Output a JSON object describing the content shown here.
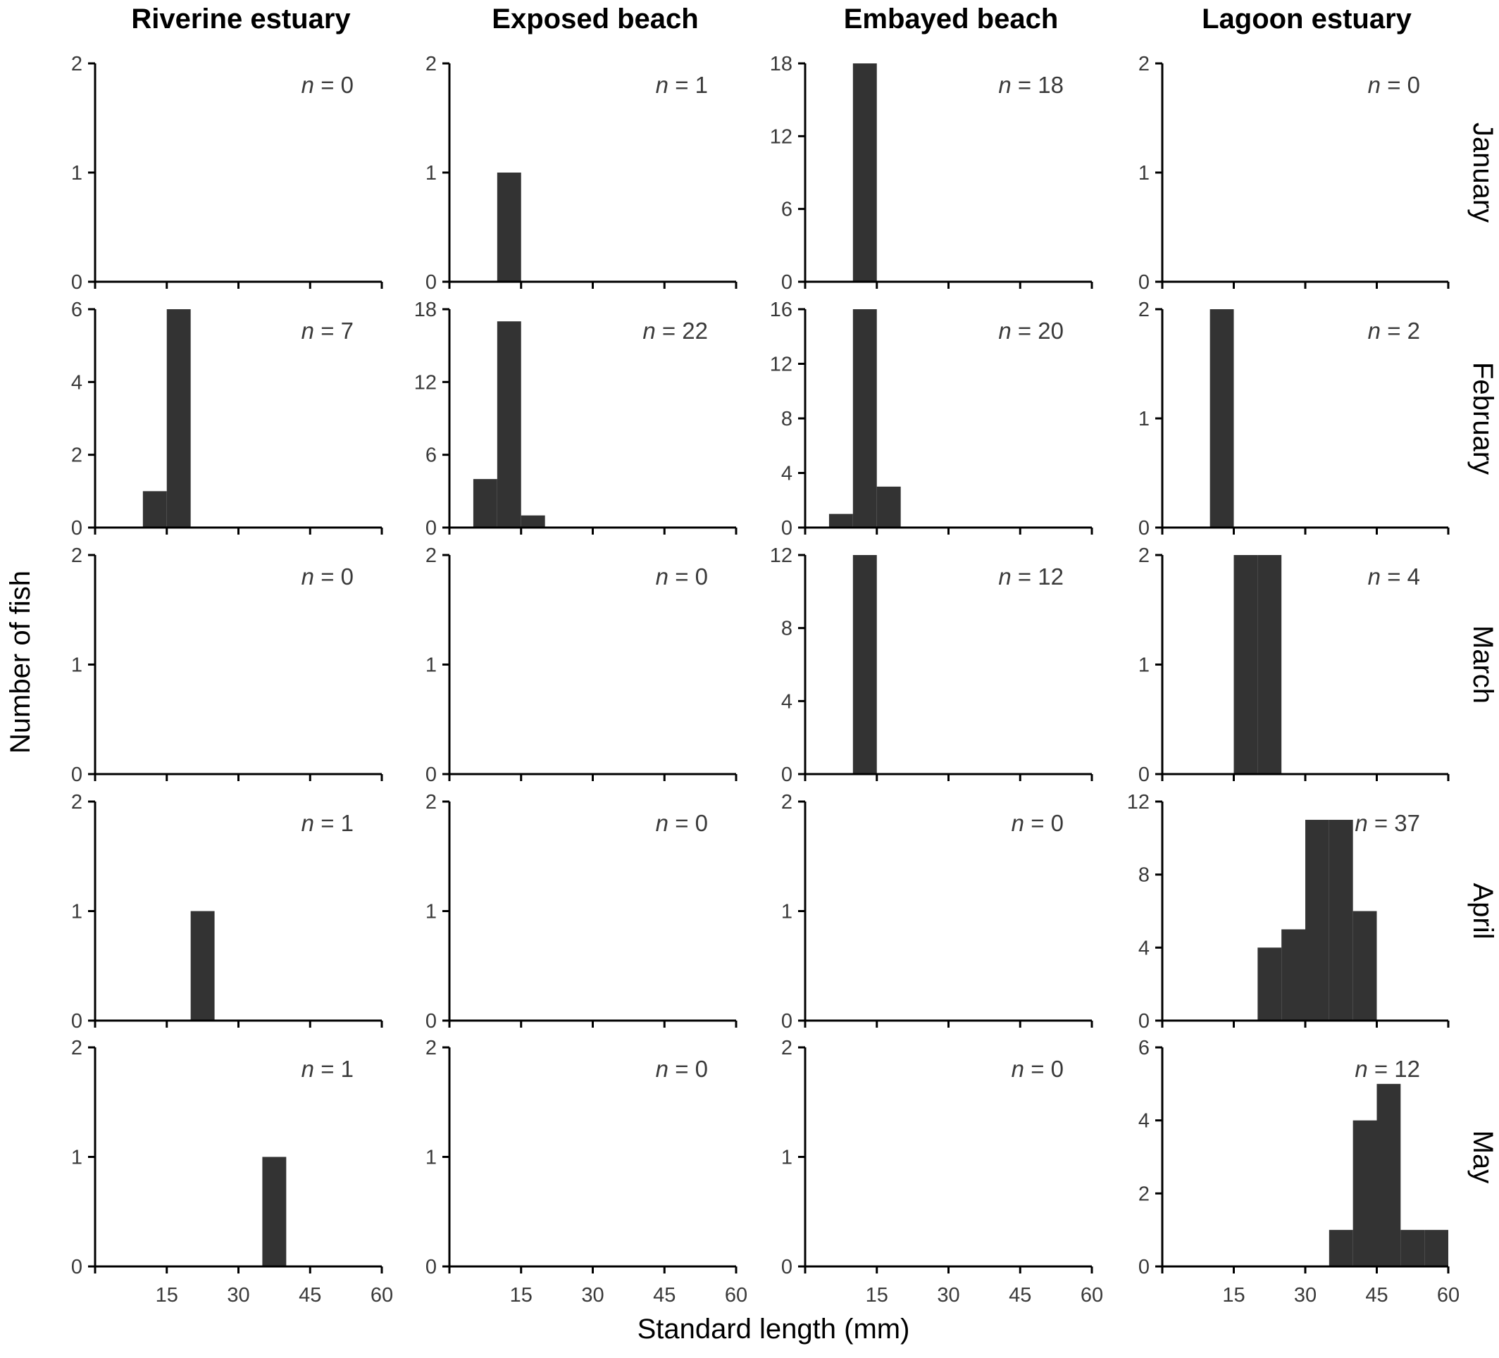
{
  "chart_data": {
    "type": "bar",
    "figure_type": "histogram-grid",
    "columns": [
      "Riverine estuary",
      "Exposed beach",
      "Embayed beach",
      "Lagoon estuary"
    ],
    "rows": [
      "January",
      "February",
      "March",
      "April",
      "May"
    ],
    "xlabel": "Standard length (mm)",
    "ylabel": "Number of fish",
    "xlim": [
      0,
      60
    ],
    "xticks": [
      15,
      30,
      45,
      60
    ],
    "bin_width": 5,
    "bar_color": "#333333",
    "grid": false,
    "n_prefix": "n",
    "n_sep": " = ",
    "panels": [
      [
        {
          "ymax": 2,
          "yticks": [
            0,
            1,
            2
          ],
          "n": 0,
          "bins": []
        },
        {
          "ymax": 2,
          "yticks": [
            0,
            1,
            2
          ],
          "n": 1,
          "bins": [
            {
              "x0": 10,
              "count": 1
            }
          ]
        },
        {
          "ymax": 18,
          "yticks": [
            0,
            6,
            12,
            18
          ],
          "n": 18,
          "bins": [
            {
              "x0": 10,
              "count": 18
            }
          ]
        },
        {
          "ymax": 2,
          "yticks": [
            0,
            1,
            2
          ],
          "n": 0,
          "bins": []
        }
      ],
      [
        {
          "ymax": 6,
          "yticks": [
            0,
            2,
            4,
            6
          ],
          "n": 7,
          "bins": [
            {
              "x0": 10,
              "count": 1
            },
            {
              "x0": 15,
              "count": 6
            }
          ]
        },
        {
          "ymax": 18,
          "yticks": [
            0,
            6,
            12,
            18
          ],
          "n": 22,
          "bins": [
            {
              "x0": 5,
              "count": 4
            },
            {
              "x0": 10,
              "count": 17
            },
            {
              "x0": 15,
              "count": 1
            }
          ]
        },
        {
          "ymax": 16,
          "yticks": [
            0,
            4,
            8,
            12,
            16
          ],
          "n": 20,
          "bins": [
            {
              "x0": 5,
              "count": 1
            },
            {
              "x0": 10,
              "count": 16
            },
            {
              "x0": 15,
              "count": 3
            }
          ]
        },
        {
          "ymax": 2,
          "yticks": [
            0,
            1,
            2
          ],
          "n": 2,
          "bins": [
            {
              "x0": 10,
              "count": 2
            }
          ]
        }
      ],
      [
        {
          "ymax": 2,
          "yticks": [
            0,
            1,
            2
          ],
          "n": 0,
          "bins": []
        },
        {
          "ymax": 2,
          "yticks": [
            0,
            1,
            2
          ],
          "n": 0,
          "bins": []
        },
        {
          "ymax": 12,
          "yticks": [
            0,
            4,
            8,
            12
          ],
          "n": 12,
          "bins": [
            {
              "x0": 10,
              "count": 12
            }
          ]
        },
        {
          "ymax": 2,
          "yticks": [
            0,
            1,
            2
          ],
          "n": 4,
          "bins": [
            {
              "x0": 15,
              "count": 2
            },
            {
              "x0": 20,
              "count": 2
            }
          ]
        }
      ],
      [
        {
          "ymax": 2,
          "yticks": [
            0,
            1,
            2
          ],
          "n": 1,
          "bins": [
            {
              "x0": 20,
              "count": 1
            }
          ]
        },
        {
          "ymax": 2,
          "yticks": [
            0,
            1,
            2
          ],
          "n": 0,
          "bins": []
        },
        {
          "ymax": 2,
          "yticks": [
            0,
            1,
            2
          ],
          "n": 0,
          "bins": []
        },
        {
          "ymax": 12,
          "yticks": [
            0,
            4,
            8,
            12
          ],
          "n": 37,
          "bins": [
            {
              "x0": 20,
              "count": 4
            },
            {
              "x0": 25,
              "count": 5
            },
            {
              "x0": 30,
              "count": 11
            },
            {
              "x0": 35,
              "count": 11
            },
            {
              "x0": 40,
              "count": 6
            }
          ]
        }
      ],
      [
        {
          "ymax": 2,
          "yticks": [
            0,
            1,
            2
          ],
          "n": 1,
          "bins": [
            {
              "x0": 35,
              "count": 1
            }
          ]
        },
        {
          "ymax": 2,
          "yticks": [
            0,
            1,
            2
          ],
          "n": 0,
          "bins": []
        },
        {
          "ymax": 2,
          "yticks": [
            0,
            1,
            2
          ],
          "n": 0,
          "bins": []
        },
        {
          "ymax": 6,
          "yticks": [
            0,
            2,
            4,
            6
          ],
          "n": 12,
          "bins": [
            {
              "x0": 35,
              "count": 1
            },
            {
              "x0": 40,
              "count": 4
            },
            {
              "x0": 45,
              "count": 5
            },
            {
              "x0": 50,
              "count": 1
            },
            {
              "x0": 55,
              "count": 1
            }
          ]
        }
      ]
    ]
  }
}
